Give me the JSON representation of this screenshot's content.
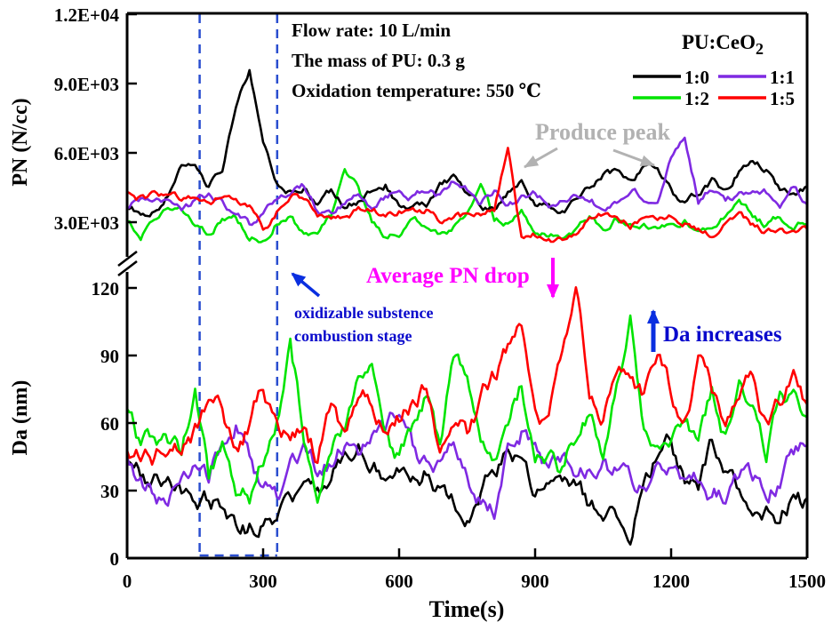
{
  "figure": {
    "info": {
      "flow_rate": "Flow rate: 10 L/min",
      "pu_mass": "The mass of PU: 0.3 g",
      "oxidation_temp": "Oxidation temperature: 550 ℃"
    }
  },
  "legend": {
    "title": "PU:CeO",
    "title_sub": "2",
    "entries": [
      {
        "label": "1:0",
        "color": "#000000"
      },
      {
        "label": "1:1",
        "color": "#7f2ae2"
      },
      {
        "label": "1:2",
        "color": "#00e400"
      },
      {
        "label": "1:5",
        "color": "#ff0000"
      }
    ]
  },
  "annotations": {
    "produce_peak": {
      "text": "Produce peak",
      "color": "#b2b2b2"
    },
    "average_pn_drop": {
      "text": "Average PN drop",
      "color": "#ff00ff"
    },
    "oxidizable_line1": {
      "text": "oxidizable substence",
      "color": "#0a0acc"
    },
    "oxidizable_line2": {
      "text": "combustion stage",
      "color": "#0a0acc"
    },
    "da_increases": {
      "text": "Da increases",
      "color": "#0a0acc"
    },
    "dashed_region_color": "#2a4ecf"
  },
  "chart_data": {
    "type": "line",
    "x": {
      "label": "Time(s)",
      "min": 0,
      "max": 1500,
      "step": 30,
      "tick_values": [
        0,
        300,
        600,
        900,
        1200,
        1500
      ],
      "tick_labels": [
        "0",
        "300",
        "600",
        "900",
        "1200",
        "1500"
      ]
    },
    "dashed_region_x": [
      160,
      331
    ],
    "axis_break": true,
    "panels": [
      {
        "name": "PN",
        "ylabel": "PN (N/cc)",
        "ylim": [
          2000,
          12000
        ],
        "yticks": [
          {
            "value": 3000,
            "label": "3.0E+03"
          },
          {
            "value": 6000,
            "label": "6.0E+03"
          },
          {
            "value": 9000,
            "label": "9.0E+03"
          },
          {
            "value": 12000,
            "label": "1.2E+04"
          }
        ],
        "series": [
          {
            "name": "1:0",
            "color": "#000000",
            "values": [
              3700,
              3400,
              3600,
              4200,
              5300,
              5600,
              4600,
              5400,
              8200,
              9700,
              6300,
              4600,
              4300,
              4500,
              3800,
              4300,
              3700,
              3900,
              4500,
              4700,
              3600,
              3400,
              3700,
              4500,
              4800,
              4300,
              3700,
              3500,
              4300,
              4600,
              3900,
              3600,
              3400,
              3800,
              4500,
              5000,
              5100,
              4500,
              5300,
              5500,
              4400,
              3700,
              4200,
              4700,
              4300,
              5300,
              5800,
              5300,
              4400,
              4300,
              4600
            ]
          },
          {
            "name": "1:1",
            "color": "#7f2ae2",
            "values": [
              3600,
              3900,
              4100,
              3700,
              3500,
              3900,
              4100,
              3900,
              3300,
              2800,
              3300,
              4000,
              4400,
              4600,
              3600,
              3300,
              3900,
              4200,
              3700,
              4100,
              4500,
              4200,
              4400,
              4100,
              4700,
              4300,
              3800,
              4200,
              3700,
              4000,
              4300,
              3700,
              4000,
              4400,
              4100,
              3600,
              4000,
              4700,
              4200,
              3800,
              5800,
              6700,
              3900,
              4500,
              4000,
              4200,
              4400,
              4300,
              3700,
              4400,
              3900
            ]
          },
          {
            "name": "1:2",
            "color": "#00e400",
            "values": [
              3000,
              2500,
              3200,
              3400,
              3300,
              2700,
              2300,
              3200,
              3300,
              2400,
              2200,
              3100,
              3300,
              2500,
              2300,
              3100,
              5100,
              4400,
              3000,
              2400,
              2600,
              3200,
              2700,
              2300,
              2800,
              3400,
              5000,
              3300,
              2900,
              3300,
              2600,
              2400,
              2300,
              2700,
              3300,
              2800,
              3200,
              2700,
              3000,
              2600,
              2800,
              3100,
              2700,
              3000,
              3400,
              3900,
              3200,
              2900,
              3200,
              2800,
              3000
            ]
          },
          {
            "name": "1:5",
            "color": "#ff0000",
            "values": [
              4200,
              4000,
              4100,
              4200,
              4100,
              4200,
              4000,
              4200,
              3800,
              3500,
              2700,
              3400,
              4300,
              4100,
              3400,
              2900,
              3300,
              3500,
              3400,
              3300,
              3500,
              3400,
              3500,
              3000,
              3400,
              3300,
              3400,
              3500,
              6400,
              2300,
              2400,
              2500,
              2300,
              2700,
              3400,
              3500,
              3300,
              2900,
              3400,
              3200,
              3300,
              3100,
              2700,
              2500,
              3000,
              3300,
              2800,
              2600,
              2900,
              2500,
              2700
            ]
          }
        ]
      },
      {
        "name": "Da",
        "ylabel": "Da (nm)",
        "ylim": [
          0,
          120
        ],
        "yticks": [
          {
            "value": 0,
            "label": "0"
          },
          {
            "value": 30,
            "label": "30"
          },
          {
            "value": 60,
            "label": "60"
          },
          {
            "value": 90,
            "label": "90"
          },
          {
            "value": 120,
            "label": "120"
          }
        ],
        "series": [
          {
            "name": "1:0",
            "color": "#000000",
            "values": [
              40,
              37,
              34,
              31,
              28,
              27,
              26,
              23,
              17,
              15,
              15,
              16,
              26,
              31,
              29,
              34,
              47,
              51,
              40,
              33,
              38,
              34,
              39,
              30,
              24,
              22,
              30,
              40,
              46,
              40,
              30,
              28,
              25,
              28,
              22,
              20,
              17,
              14,
              30,
              48,
              52,
              36,
              30,
              49,
              42,
              30,
              25,
              22,
              17,
              28,
              25
            ]
          },
          {
            "name": "1:1",
            "color": "#7f2ae2",
            "values": [
              42,
              36,
              28,
              25,
              38,
              45,
              38,
              50,
              58,
              45,
              30,
              25,
              42,
              47,
              40,
              44,
              50,
              45,
              52,
              60,
              69,
              50,
              40,
              44,
              47,
              40,
              26,
              23,
              45,
              57,
              45,
              38,
              40,
              36,
              38,
              40,
              38,
              36,
              34,
              38,
              42,
              36,
              34,
              30,
              28,
              38,
              35,
              32,
              36,
              44,
              50
            ]
          },
          {
            "name": "1:2",
            "color": "#00e400",
            "values": [
              65,
              48,
              55,
              50,
              45,
              77,
              35,
              48,
              30,
              27,
              45,
              60,
              92,
              55,
              35,
              48,
              55,
              80,
              85,
              50,
              42,
              55,
              70,
              50,
              88,
              85,
              55,
              45,
              60,
              75,
              50,
              45,
              40,
              55,
              65,
              50,
              80,
              105,
              60,
              45,
              55,
              62,
              48,
              75,
              55,
              85,
              70,
              50,
              78,
              70,
              58
            ]
          },
          {
            "name": "1:5",
            "color": "#ff0000",
            "values": [
              45,
              48,
              44,
              50,
              47,
              55,
              70,
              65,
              48,
              60,
              75,
              58,
              52,
              60,
              44,
              65,
              55,
              77,
              70,
              55,
              62,
              70,
              78,
              52,
              60,
              55,
              70,
              80,
              95,
              106,
              60,
              55,
              85,
              113,
              75,
              60,
              88,
              85,
              70,
              88,
              75,
              62,
              87,
              70,
              58,
              75,
              80,
              58,
              70,
              85,
              65
            ]
          }
        ]
      }
    ]
  }
}
